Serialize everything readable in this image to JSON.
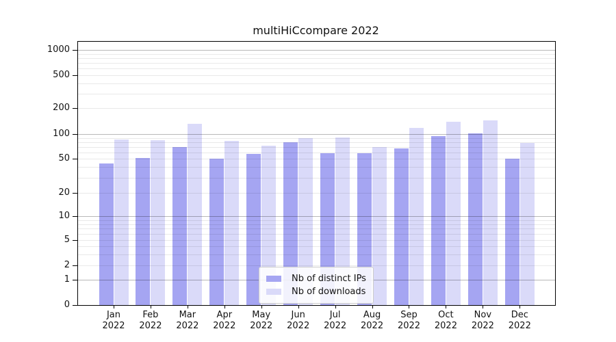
{
  "chart_data": {
    "type": "bar",
    "title": "multiHiCcompare 2022",
    "categories": [
      "Jan",
      "Feb",
      "Mar",
      "Apr",
      "May",
      "Jun",
      "Jul",
      "Aug",
      "Sep",
      "Oct",
      "Nov",
      "Dec"
    ],
    "x_tick_year": "2022",
    "series": [
      {
        "name": "Nb of distinct IPs",
        "color": "#a5a5f2",
        "values": [
          44,
          51,
          70,
          50,
          57,
          80,
          58,
          59,
          67,
          96,
          103,
          50
        ]
      },
      {
        "name": "Nb of downloads",
        "color": "#dadaf9",
        "values": [
          86,
          84,
          132,
          83,
          73,
          89,
          92,
          70,
          120,
          141,
          146,
          79
        ]
      }
    ],
    "y_axis": {
      "scale": "symlog",
      "ticks": [
        {
          "value": 1000,
          "label": "1000"
        },
        {
          "value": 500,
          "label": "500"
        },
        {
          "value": 200,
          "label": "200"
        },
        {
          "value": 100,
          "label": "100"
        },
        {
          "value": 50,
          "label": "50"
        },
        {
          "value": 20,
          "label": "20"
        },
        {
          "value": 10,
          "label": "10"
        },
        {
          "value": 5,
          "label": "5"
        },
        {
          "value": 2,
          "label": "2"
        },
        {
          "value": 1,
          "label": "1"
        },
        {
          "value": 0,
          "label": "0"
        }
      ],
      "minor_gridlines": [
        3,
        4,
        6,
        7,
        8,
        9,
        30,
        40,
        60,
        70,
        80,
        90,
        300,
        400,
        600,
        700,
        800,
        900
      ]
    },
    "grid": true,
    "legend_position": "lower center"
  },
  "legend": {
    "items": [
      {
        "label": "Nb of distinct IPs",
        "color": "#a5a5f2"
      },
      {
        "label": "Nb of downloads",
        "color": "#dadaf9"
      }
    ]
  }
}
